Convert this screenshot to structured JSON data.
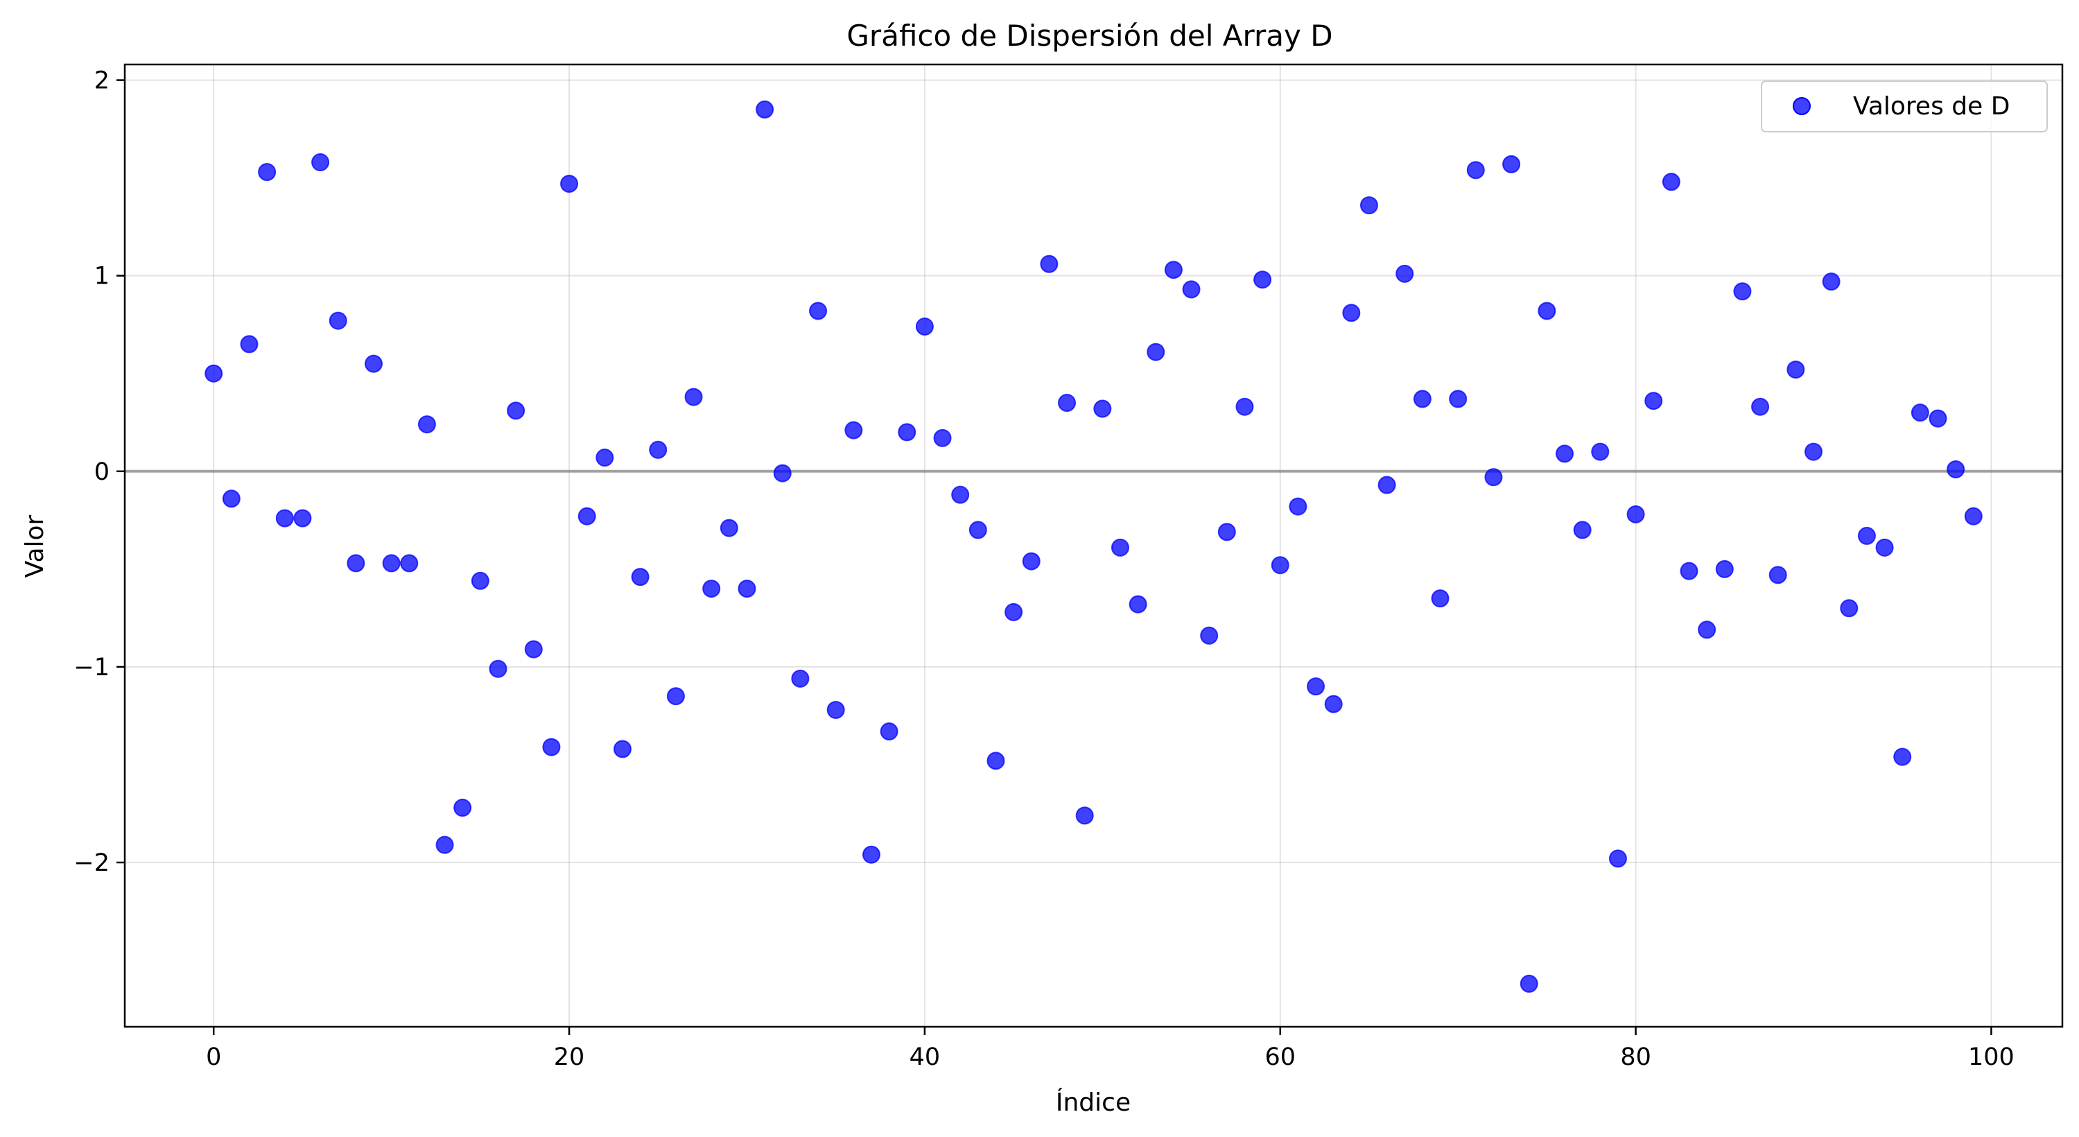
{
  "chart_data": {
    "type": "scatter",
    "title": "Gráfico de Dispersión del Array D",
    "xlabel": "Índice",
    "ylabel": "Valor",
    "xlim": [
      -5,
      104
    ],
    "ylim": [
      -2.84,
      2.08
    ],
    "xticks": [
      0,
      20,
      40,
      60,
      80,
      100
    ],
    "xtick_labels": [
      "0",
      "20",
      "40",
      "60",
      "80",
      "100"
    ],
    "yticks": [
      -2,
      -1,
      0,
      1,
      2
    ],
    "ytick_labels": [
      "−2",
      "−1",
      "0",
      "1",
      "2"
    ],
    "grid": true,
    "reference_line_y": 0,
    "legend_position": "top-right",
    "series": [
      {
        "name": "Valores de D",
        "color": "#0000ff",
        "alpha": 0.75,
        "x": [
          0,
          1,
          2,
          3,
          4,
          5,
          6,
          7,
          8,
          9,
          10,
          11,
          12,
          13,
          14,
          15,
          16,
          17,
          18,
          19,
          20,
          21,
          22,
          23,
          24,
          25,
          26,
          27,
          28,
          29,
          30,
          31,
          32,
          33,
          34,
          35,
          36,
          37,
          38,
          39,
          40,
          41,
          42,
          43,
          44,
          45,
          46,
          47,
          48,
          49,
          50,
          51,
          52,
          53,
          54,
          55,
          56,
          57,
          58,
          59,
          60,
          61,
          62,
          63,
          64,
          65,
          66,
          67,
          68,
          69,
          70,
          71,
          72,
          73,
          74,
          75,
          76,
          77,
          78,
          79,
          80,
          81,
          82,
          83,
          84,
          85,
          86,
          87,
          88,
          89,
          90,
          91,
          92,
          93,
          94,
          95,
          96,
          97,
          98,
          99
        ],
        "y": [
          0.5,
          -0.14,
          0.65,
          1.53,
          -0.24,
          -0.24,
          1.58,
          0.77,
          -0.47,
          0.55,
          -0.47,
          -0.47,
          0.24,
          -1.91,
          -1.72,
          -0.56,
          -1.01,
          0.31,
          -0.91,
          -1.41,
          1.47,
          -0.23,
          0.07,
          -1.42,
          -0.54,
          0.11,
          -1.15,
          0.38,
          -0.6,
          -0.29,
          -0.6,
          1.85,
          -0.01,
          -1.06,
          0.82,
          -1.22,
          0.21,
          -1.96,
          -1.33,
          0.2,
          0.74,
          0.17,
          -0.12,
          -0.3,
          -1.48,
          -0.72,
          -0.46,
          1.06,
          0.35,
          -1.76,
          0.32,
          -0.39,
          -0.68,
          0.61,
          1.03,
          0.93,
          -0.84,
          -0.31,
          0.33,
          0.98,
          -0.48,
          -0.18,
          -1.1,
          -1.19,
          0.81,
          1.36,
          -0.07,
          1.01,
          0.37,
          -0.65,
          0.37,
          1.54,
          -0.03,
          1.57,
          -2.62,
          0.82,
          0.09,
          -0.3,
          0.1,
          -1.98,
          -0.22,
          0.36,
          1.48,
          -0.51,
          -0.81,
          -0.5,
          0.92,
          0.33,
          -0.53,
          0.52,
          0.1,
          0.97,
          -0.7,
          -0.33,
          -0.39,
          -1.46,
          0.3,
          0.27,
          0.01,
          -0.23
        ]
      }
    ]
  }
}
